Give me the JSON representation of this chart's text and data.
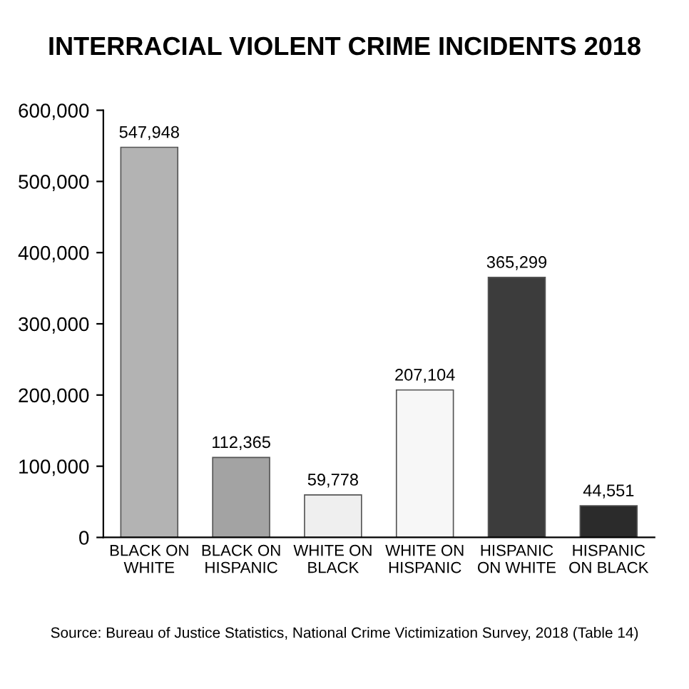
{
  "chart_data": {
    "type": "bar",
    "title": "INTERRACIAL VIOLENT CRIME INCIDENTS 2018",
    "categories": [
      "BLACK ON\nWHITE",
      "BLACK ON\nHISPANIC",
      "WHITE ON\nBLACK",
      "WHITE ON\nHISPANIC",
      "HISPANIC\nON WHITE",
      "HISPANIC\nON BLACK"
    ],
    "values": [
      547948,
      112365,
      59778,
      207104,
      365299,
      44551
    ],
    "colors": [
      "#b3b3b3",
      "#a3a3a3",
      "#efefef",
      "#f7f7f7",
      "#3c3c3c",
      "#2b2b2b"
    ],
    "value_labels": [
      "547,948",
      "112,365",
      "59,778",
      "207,104",
      "365,299",
      "44,551"
    ],
    "ylim": [
      0,
      600000
    ],
    "yticks": [
      {
        "value": 0,
        "label": "0"
      },
      {
        "value": 100000,
        "label": "100,000"
      },
      {
        "value": 200000,
        "label": "200,000"
      },
      {
        "value": 300000,
        "label": "300,000"
      },
      {
        "value": 400000,
        "label": "400,000"
      },
      {
        "value": 500000,
        "label": "500,000"
      },
      {
        "value": 600000,
        "label": "600,000"
      }
    ],
    "grid": false,
    "annotations": [
      "Source: Bureau of Justice Statistics, National Crime Victimization Survey, 2018 (Table 14)"
    ]
  }
}
